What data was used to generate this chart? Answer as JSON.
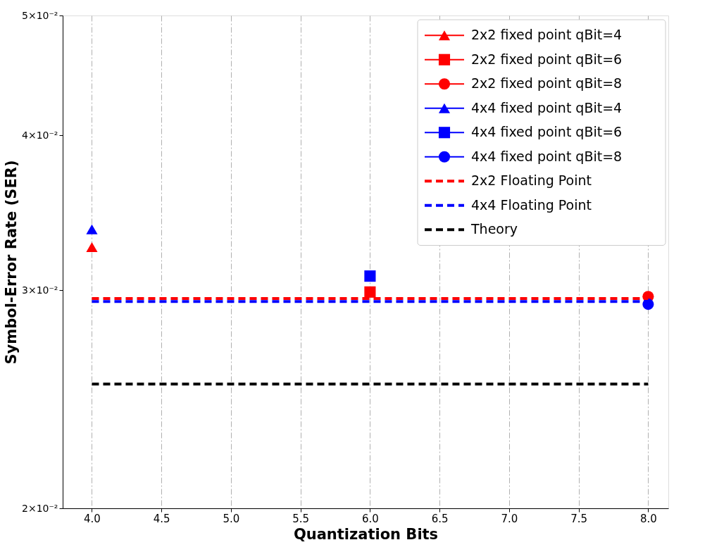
{
  "chart_data": {
    "type": "scatter",
    "xlabel": "Quantization Bits",
    "ylabel": "Symbol-Error Rate (SER)",
    "log": "y",
    "grid": "x",
    "legend": "top right",
    "xlim": [
      3.79,
      8.145
    ],
    "xticks": [
      {
        "value": 4,
        "label": "4.0"
      },
      {
        "value": 4.5,
        "label": "4.5"
      },
      {
        "value": 5,
        "label": "5.0"
      },
      {
        "value": 5.5,
        "label": "5.5"
      },
      {
        "value": 6,
        "label": "6.0"
      },
      {
        "value": 6.5,
        "label": "6.5"
      },
      {
        "value": 7,
        "label": "7.0"
      },
      {
        "value": 7.5,
        "label": "7.5"
      },
      {
        "value": 8,
        "label": "8.0"
      }
    ],
    "ylim": [
      0.02,
      0.05
    ],
    "yticks": [
      {
        "value": 0.02,
        "label": "2×10⁻²"
      },
      {
        "value": 0.03,
        "label": "3×10⁻²"
      },
      {
        "value": 0.04,
        "label": "4×10⁻²"
      },
      {
        "value": 0.05,
        "label": "5×10⁻²"
      }
    ],
    "series": [
      {
        "name": "2x2 fixed point qBit=4",
        "color": "#ff0000",
        "marker": "triangle",
        "x": [
          4
        ],
        "values": [
          0.0325
        ]
      },
      {
        "name": "2x2 fixed point qBit=6",
        "color": "#ff0000",
        "marker": "square",
        "x": [
          6
        ],
        "values": [
          0.0299
        ]
      },
      {
        "name": "2x2 fixed point qBit=8",
        "color": "#ff0000",
        "marker": "circle",
        "x": [
          8
        ],
        "values": [
          0.02965
        ]
      },
      {
        "name": "4x4 fixed point qBit=4",
        "color": "#0000ff",
        "marker": "triangle",
        "x": [
          4
        ],
        "values": [
          0.0336
        ]
      },
      {
        "name": "4x4 fixed point qBit=6",
        "color": "#0000ff",
        "marker": "square",
        "x": [
          6
        ],
        "values": [
          0.0308
        ]
      },
      {
        "name": "4x4 fixed point qBit=8",
        "color": "#0000ff",
        "marker": "circle",
        "x": [
          8
        ],
        "values": [
          0.02923
        ]
      },
      {
        "name": "2x2 Floating Point",
        "color": "#ff0000",
        "type": "line",
        "line_style": "dashed",
        "marker": "none",
        "x": [
          4,
          8
        ],
        "values": [
          0.02954,
          0.02954
        ]
      },
      {
        "name": "4x4 Floating Point",
        "color": "#0000ff",
        "type": "line",
        "line_style": "dashed",
        "marker": "none",
        "x": [
          4,
          8
        ],
        "values": [
          0.02938,
          0.02938
        ]
      },
      {
        "name": "Theory",
        "color": "#000000",
        "type": "line",
        "line_style": "dashed",
        "marker": "none",
        "x": [
          4,
          8
        ],
        "values": [
          0.0252,
          0.0252
        ]
      }
    ]
  }
}
